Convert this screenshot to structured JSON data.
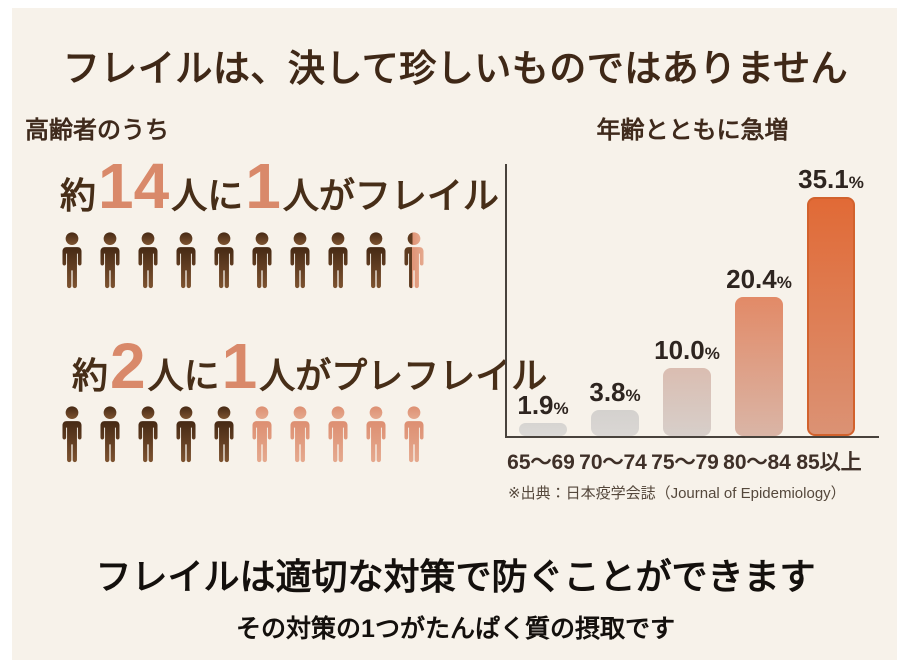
{
  "header": {
    "title": "フレイルは、決して珍しいものではありません"
  },
  "stats": {
    "heading": "高齢者のうち",
    "rows": [
      {
        "prefix": "約",
        "number1": "14",
        "connector": "人に",
        "number2": "1",
        "suffix": "人がフレイル",
        "icons": [
          "brown",
          "brown",
          "brown",
          "brown",
          "brown",
          "brown",
          "brown",
          "brown",
          "brown",
          "split"
        ]
      },
      {
        "prefix": "約",
        "number1": "2",
        "connector": "人に",
        "number2": "1",
        "suffix": "人がプレフレイル",
        "icons": [
          "brown",
          "brown",
          "brown",
          "brown",
          "brown",
          "salmon",
          "salmon",
          "salmon",
          "salmon",
          "salmon"
        ]
      }
    ]
  },
  "chart": {
    "heading": "年齢とともに急増",
    "source": "※出典：日本疫学会誌（Journal of Epidemiology）"
  },
  "chart_data": {
    "type": "bar",
    "title": "年齢とともに急増",
    "categories": [
      "65〜69",
      "70〜74",
      "75〜79",
      "80〜84",
      "85以上"
    ],
    "values": [
      1.9,
      3.8,
      10.0,
      20.4,
      35.1
    ],
    "labels": [
      "1.9",
      "3.8",
      "10.0",
      "20.4",
      "35.1"
    ],
    "unit": "%",
    "xlabel": "",
    "ylabel": "",
    "ylim": [
      0,
      40
    ],
    "grid": false,
    "legend": "none",
    "source": "※出典：日本疫学会誌（Journal of Epidemiology）",
    "bar_styles": [
      {
        "top": "#d6d4d1",
        "bottom": "#dcdad7"
      },
      {
        "top": "#d4d1ce",
        "bottom": "#dad7d4"
      },
      {
        "top": "#dabdb1",
        "bottom": "#d7cfca"
      },
      {
        "top": "#e28a67",
        "bottom": "#dab5a6"
      },
      {
        "top": "#e16a36",
        "bottom": "#db9274",
        "border": "#d2622d"
      }
    ]
  },
  "footer": {
    "heading": "フレイルは適切な対策で防ぐことができます",
    "subheading": "その対策の1つがたんぱく質の摂取です"
  },
  "colors": {
    "page_bg": "#ffffff",
    "panel_bg": "#f7f2ea",
    "title_text": "#3f2817",
    "accent_salmon": "#d9896a",
    "stat_text": "#472e18",
    "icon_brown_top": "#462914",
    "icon_brown_bottom": "#7d5330",
    "icon_salmon_top": "#dd8f72",
    "icon_salmon_bottom": "#e5a98e",
    "axis": "#48423c",
    "bar_label_text": "#2e2520",
    "footer_text": "#14100d"
  }
}
